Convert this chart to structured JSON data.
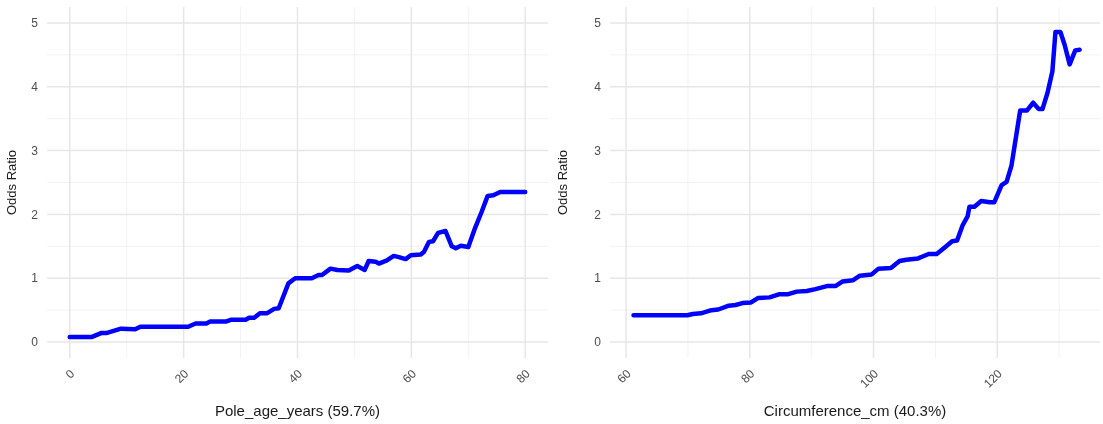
{
  "chart_data": [
    {
      "type": "line",
      "xlabel": "Pole_age_years (59.7%)",
      "ylabel": "Odds Ratio",
      "xlim": [
        -4,
        84
      ],
      "xticks": [
        0,
        20,
        40,
        60,
        80
      ],
      "ylim": [
        -0.25,
        5.25
      ],
      "yticks": [
        0,
        1,
        2,
        3,
        4,
        5
      ],
      "grid": true,
      "series": [
        {
          "color": "#0000ff",
          "x": [
            0,
            3.9,
            5.5,
            6.4,
            9,
            11.5,
            12.4,
            20.8,
            22.1,
            24,
            24.6,
            27.4,
            28.4,
            30.9,
            31.5,
            32.4,
            33.4,
            34.6,
            35.9,
            36.7,
            38.4,
            39.6,
            42.5,
            43.7,
            44.3,
            45.8,
            47,
            49,
            50.5,
            51.8,
            52.5,
            53.7,
            54.3,
            55.7,
            56.9,
            57.8,
            59,
            59.9,
            61.6,
            62.2,
            63.1,
            63.8,
            64.7,
            66,
            67.1,
            67.8,
            68.7,
            70,
            71.2,
            72.3,
            73.4,
            74.4,
            75.6,
            80
          ],
          "values": [
            0.08,
            0.08,
            0.14,
            0.14,
            0.21,
            0.2,
            0.24,
            0.24,
            0.29,
            0.29,
            0.32,
            0.32,
            0.35,
            0.35,
            0.38,
            0.38,
            0.45,
            0.45,
            0.52,
            0.53,
            0.92,
            1.0,
            1.0,
            1.05,
            1.05,
            1.15,
            1.13,
            1.12,
            1.19,
            1.13,
            1.27,
            1.26,
            1.23,
            1.28,
            1.35,
            1.33,
            1.3,
            1.36,
            1.37,
            1.41,
            1.57,
            1.58,
            1.71,
            1.74,
            1.5,
            1.47,
            1.51,
            1.49,
            1.79,
            2.03,
            2.29,
            2.3,
            2.35,
            2.35
          ]
        }
      ]
    },
    {
      "type": "line",
      "xlabel": "Circumference_cm (40.3%)",
      "ylabel": "Odds Ratio",
      "xlim": [
        57.4,
        136.6
      ],
      "xticks": [
        60,
        80,
        100,
        120
      ],
      "ylim": [
        -0.25,
        5.25
      ],
      "yticks": [
        0,
        1,
        2,
        3,
        4,
        5
      ],
      "grid": true,
      "series": [
        {
          "color": "#0000ff",
          "x": [
            61.2,
            69.9,
            70.8,
            72.1,
            73.8,
            74.9,
            76.6,
            77.7,
            78.8,
            80.2,
            81.3,
            83.2,
            84.8,
            86.2,
            87.6,
            89.2,
            90.6,
            92.6,
            93.9,
            95,
            96.7,
            97.8,
            99.7,
            100.8,
            102.8,
            104.2,
            105.3,
            107.2,
            108.9,
            110.2,
            111.6,
            112.7,
            113.5,
            114.4,
            115.2,
            115.5,
            116.3,
            117.4,
            118.8,
            119.5,
            120.7,
            121.5,
            122.3,
            123.7,
            124.8,
            125.8,
            126.7,
            127.3,
            128.1,
            128.9,
            129.4,
            130.2,
            130.9,
            131.7,
            132.6,
            133.3
          ],
          "values": [
            0.42,
            0.42,
            0.44,
            0.45,
            0.5,
            0.51,
            0.57,
            0.58,
            0.61,
            0.62,
            0.69,
            0.7,
            0.75,
            0.75,
            0.79,
            0.8,
            0.83,
            0.88,
            0.88,
            0.95,
            0.97,
            1.04,
            1.06,
            1.15,
            1.16,
            1.27,
            1.29,
            1.31,
            1.38,
            1.38,
            1.49,
            1.58,
            1.59,
            1.83,
            1.97,
            2.12,
            2.12,
            2.21,
            2.19,
            2.19,
            2.46,
            2.51,
            2.77,
            3.63,
            3.63,
            3.75,
            3.65,
            3.65,
            3.9,
            4.24,
            4.86,
            4.86,
            4.65,
            4.35,
            4.57,
            4.58
          ]
        }
      ]
    }
  ]
}
